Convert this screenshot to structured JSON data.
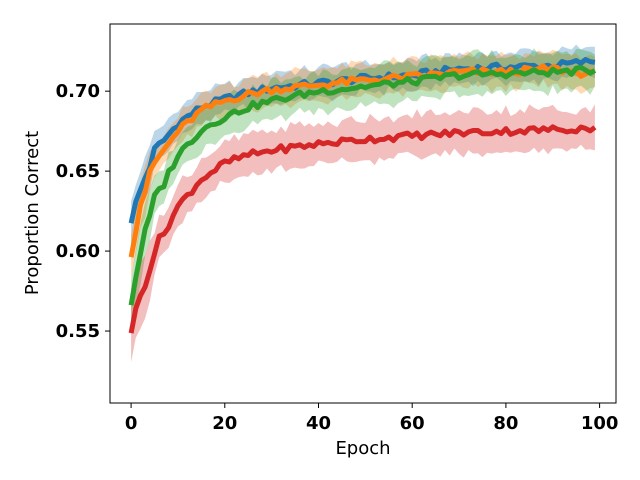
{
  "chart_data": {
    "type": "line",
    "title": "",
    "xlabel": "Epoch",
    "ylabel": "Proportion Correct",
    "xlim": [
      -4.5,
      103.5
    ],
    "ylim": [
      0.505,
      0.742
    ],
    "xticks": [
      0,
      20,
      40,
      60,
      80,
      100
    ],
    "yticks": [
      0.55,
      0.6,
      0.65,
      0.7
    ],
    "ytick_labels": [
      "0.55",
      "0.60",
      "0.65",
      "0.70"
    ],
    "grid": false,
    "legend": "none",
    "series": [
      {
        "color": "#1f77b4",
        "band_halfwidth": 0.009,
        "keypoints": [
          [
            0,
            0.62
          ],
          [
            2,
            0.638
          ],
          [
            5,
            0.662
          ],
          [
            10,
            0.68
          ],
          [
            15,
            0.69
          ],
          [
            20,
            0.695
          ],
          [
            25,
            0.699
          ],
          [
            30,
            0.702
          ],
          [
            40,
            0.705
          ],
          [
            50,
            0.708
          ],
          [
            60,
            0.71
          ],
          [
            70,
            0.714
          ],
          [
            80,
            0.715
          ],
          [
            90,
            0.716
          ],
          [
            99,
            0.719
          ]
        ]
      },
      {
        "color": "#ff7f0e",
        "band_halfwidth": 0.01,
        "keypoints": [
          [
            0,
            0.6
          ],
          [
            2,
            0.63
          ],
          [
            5,
            0.655
          ],
          [
            10,
            0.675
          ],
          [
            15,
            0.688
          ],
          [
            20,
            0.694
          ],
          [
            25,
            0.698
          ],
          [
            30,
            0.701
          ],
          [
            40,
            0.704
          ],
          [
            50,
            0.707
          ],
          [
            60,
            0.709
          ],
          [
            70,
            0.712
          ],
          [
            80,
            0.712
          ],
          [
            90,
            0.714
          ],
          [
            99,
            0.71
          ]
        ]
      },
      {
        "color": "#2ca02c",
        "band_halfwidth": 0.012,
        "keypoints": [
          [
            0,
            0.568
          ],
          [
            2,
            0.6
          ],
          [
            5,
            0.632
          ],
          [
            10,
            0.66
          ],
          [
            15,
            0.676
          ],
          [
            20,
            0.684
          ],
          [
            25,
            0.69
          ],
          [
            30,
            0.694
          ],
          [
            40,
            0.7
          ],
          [
            50,
            0.703
          ],
          [
            60,
            0.706
          ],
          [
            70,
            0.71
          ],
          [
            80,
            0.711
          ],
          [
            90,
            0.712
          ],
          [
            99,
            0.713
          ]
        ]
      },
      {
        "color": "#d62728",
        "band_halfwidth": 0.013,
        "keypoints": [
          [
            0,
            0.551
          ],
          [
            2,
            0.572
          ],
          [
            5,
            0.6
          ],
          [
            10,
            0.628
          ],
          [
            15,
            0.645
          ],
          [
            20,
            0.655
          ],
          [
            25,
            0.66
          ],
          [
            30,
            0.663
          ],
          [
            40,
            0.667
          ],
          [
            50,
            0.67
          ],
          [
            60,
            0.672
          ],
          [
            70,
            0.674
          ],
          [
            80,
            0.675
          ],
          [
            90,
            0.676
          ],
          [
            99,
            0.677
          ]
        ]
      }
    ]
  }
}
